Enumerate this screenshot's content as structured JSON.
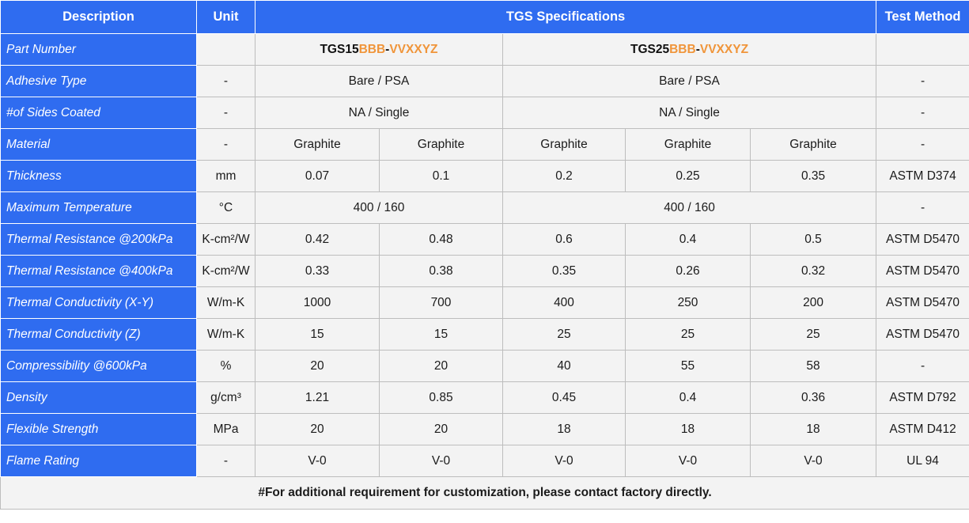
{
  "header": {
    "description": "Description",
    "unit": "Unit",
    "specifications": "TGS Specifications",
    "test_method": "Test Method"
  },
  "part_number": {
    "label": "Part Number",
    "unit": "",
    "products": [
      {
        "prefix": "TGS15",
        "suffix1": "BBB",
        "dash": "-",
        "suffix2": "VVXXYZ"
      },
      {
        "prefix": "TGS25",
        "suffix1": "BBB",
        "dash": "-",
        "suffix2": "VVXXYZ"
      }
    ],
    "test_method": "",
    "colors": {
      "accent": "#f0953a"
    }
  },
  "adhesive_type": {
    "label": "Adhesive Type",
    "unit": "-",
    "values": [
      "Bare / PSA",
      "Bare / PSA"
    ],
    "test_method": "-"
  },
  "sides_coated": {
    "label": "#of Sides Coated",
    "unit": "-",
    "values": [
      "NA / Single",
      "NA / Single"
    ],
    "test_method": "-"
  },
  "material": {
    "label": "Material",
    "unit": "-",
    "values": [
      "Graphite",
      "Graphite",
      "Graphite",
      "Graphite",
      "Graphite"
    ],
    "test_method": "-"
  },
  "thickness": {
    "label": "Thickness",
    "unit": "mm",
    "values": [
      "0.07",
      "0.1",
      "0.2",
      "0.25",
      "0.35"
    ],
    "test_method": "ASTM D374"
  },
  "max_temperature": {
    "label": "Maximum Temperature",
    "unit": "°C",
    "values": [
      "400 / 160",
      "400 / 160"
    ],
    "test_method": "-"
  },
  "thermal_resistance_200": {
    "label": "Thermal Resistance @200kPa",
    "unit": "K-cm²/W",
    "values": [
      "0.42",
      "0.48",
      "0.6",
      "0.4",
      "0.5"
    ],
    "test_method": "ASTM D5470"
  },
  "thermal_resistance_400": {
    "label": "Thermal Resistance @400kPa",
    "unit": "K-cm²/W",
    "values": [
      "0.33",
      "0.38",
      "0.35",
      "0.26",
      "0.32"
    ],
    "test_method": "ASTM D5470"
  },
  "thermal_conductivity_xy": {
    "label": "Thermal Conductivity (X-Y)",
    "unit": "W/m-K",
    "values": [
      "1000",
      "700",
      "400",
      "250",
      "200"
    ],
    "test_method": "ASTM D5470"
  },
  "thermal_conductivity_z": {
    "label": "Thermal Conductivity (Z)",
    "unit": "W/m-K",
    "values": [
      "15",
      "15",
      "25",
      "25",
      "25"
    ],
    "test_method": "ASTM D5470"
  },
  "compressibility": {
    "label": "Compressibility @600kPa",
    "unit": "%",
    "values": [
      "20",
      "20",
      "40",
      "55",
      "58"
    ],
    "test_method": "-"
  },
  "density": {
    "label": "Density",
    "unit": "g/cm³",
    "values": [
      "1.21",
      "0.85",
      "0.45",
      "0.4",
      "0.36"
    ],
    "test_method": "ASTM D792"
  },
  "flexible_strength": {
    "label": "Flexible Strength",
    "unit": "MPa",
    "values": [
      "20",
      "20",
      "18",
      "18",
      "18"
    ],
    "test_method": "ASTM D412"
  },
  "flame_rating": {
    "label": "Flame Rating",
    "unit": "-",
    "values": [
      "V-0",
      "V-0",
      "V-0",
      "V-0",
      "V-0"
    ],
    "test_method": "UL 94"
  },
  "footer": {
    "note": "#For additional requirement for customization, please contact factory directly."
  },
  "colors": {
    "header_bg": "#2f6cf0",
    "cell_bg": "#f3f3f3"
  }
}
